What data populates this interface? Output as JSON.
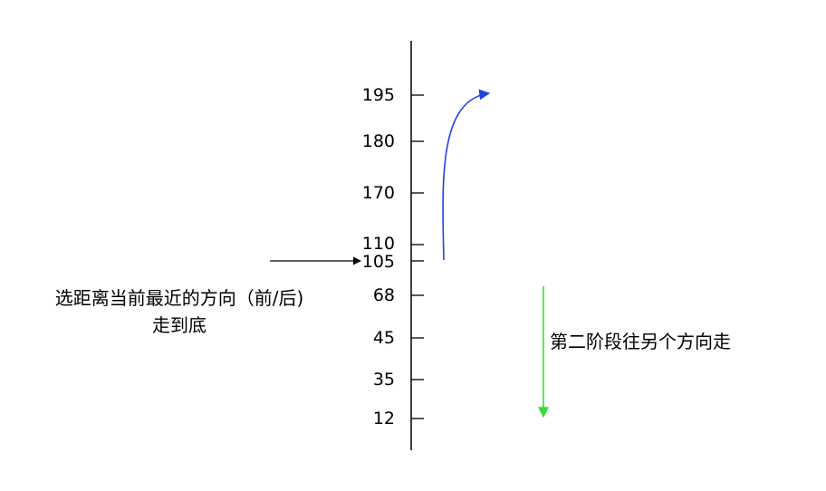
{
  "axis": {
    "ticks": [
      "195",
      "180",
      "170",
      "110",
      "105",
      "68",
      "45",
      "35",
      "12"
    ]
  },
  "annotations": {
    "left_line1": "选距离当前最近的方向（前/后)",
    "left_line2": "走到底",
    "right_text": "第二阶段往另个方向走"
  },
  "colors": {
    "axis": "#000000",
    "first_phase_arrow": "#2040e0",
    "second_phase_arrow": "#33dd33",
    "pointer_arrow": "#000000"
  }
}
